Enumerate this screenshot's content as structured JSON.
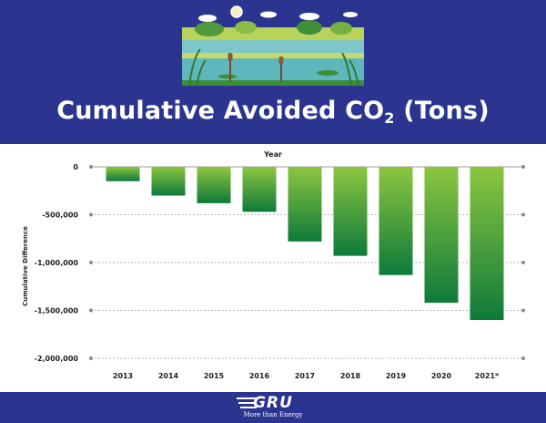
{
  "header": {
    "title_main": "Cumulative Avoided CO",
    "title_sub": "2",
    "title_tail": " (Tons)"
  },
  "footer": {
    "logo_text": "GRU",
    "logo_tagline": "More than Energy"
  },
  "colors": {
    "banner": "#2b3590",
    "bar_top": "#8cc640",
    "bar_bottom": "#0e7a3a",
    "grid": "#9e9e9e"
  },
  "chart_data": {
    "type": "bar",
    "title": "Cumulative Avoided CO2 (Tons)",
    "xlabel": "Year",
    "ylabel": "Cumulative Difference",
    "categories": [
      "2013",
      "2014",
      "2015",
      "2016",
      "2017",
      "2018",
      "2019",
      "2020",
      "2021*"
    ],
    "values": [
      -150000,
      -300000,
      -380000,
      -470000,
      -780000,
      -930000,
      -1130000,
      -1420000,
      -1600000
    ],
    "ylim": [
      -2000000,
      0
    ],
    "yticks": [
      0,
      -500000,
      -1000000,
      -1500000,
      -2000000
    ],
    "ytick_labels": [
      "0",
      "-500,000",
      "-1,000,000",
      "-1,500,000",
      "-2,000,000"
    ],
    "grid": "horizontal dotted",
    "legend": "none"
  }
}
